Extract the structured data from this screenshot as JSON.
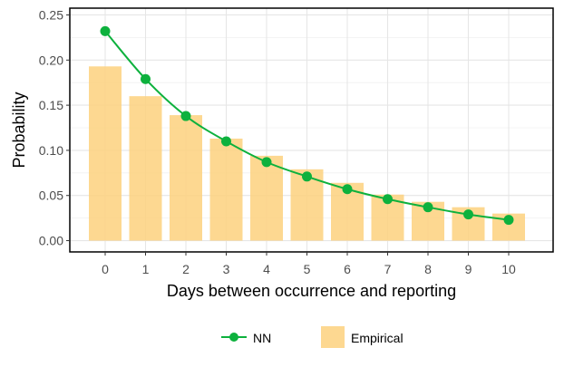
{
  "chart_data": {
    "type": "bar",
    "xlabel": "Days between occurrence and reporting",
    "ylabel": "Probability",
    "categories": [
      "0",
      "1",
      "2",
      "3",
      "4",
      "5",
      "6",
      "7",
      "8",
      "9",
      "10"
    ],
    "ylim": [
      -0.0125,
      0.2575
    ],
    "yticks": [
      "0.00",
      "0.05",
      "0.10",
      "0.15",
      "0.20",
      "0.25"
    ],
    "grid": true,
    "legend_position": "bottom",
    "series": [
      {
        "name": "Empirical",
        "type": "bar",
        "color": "#fdd17e",
        "values": [
          0.193,
          0.16,
          0.139,
          0.113,
          0.094,
          0.079,
          0.064,
          0.051,
          0.043,
          0.037,
          0.03
        ]
      },
      {
        "name": "NN",
        "type": "line",
        "color": "#0db13d",
        "values": [
          0.232,
          0.179,
          0.138,
          0.11,
          0.087,
          0.071,
          0.057,
          0.046,
          0.037,
          0.029,
          0.023
        ]
      }
    ]
  }
}
